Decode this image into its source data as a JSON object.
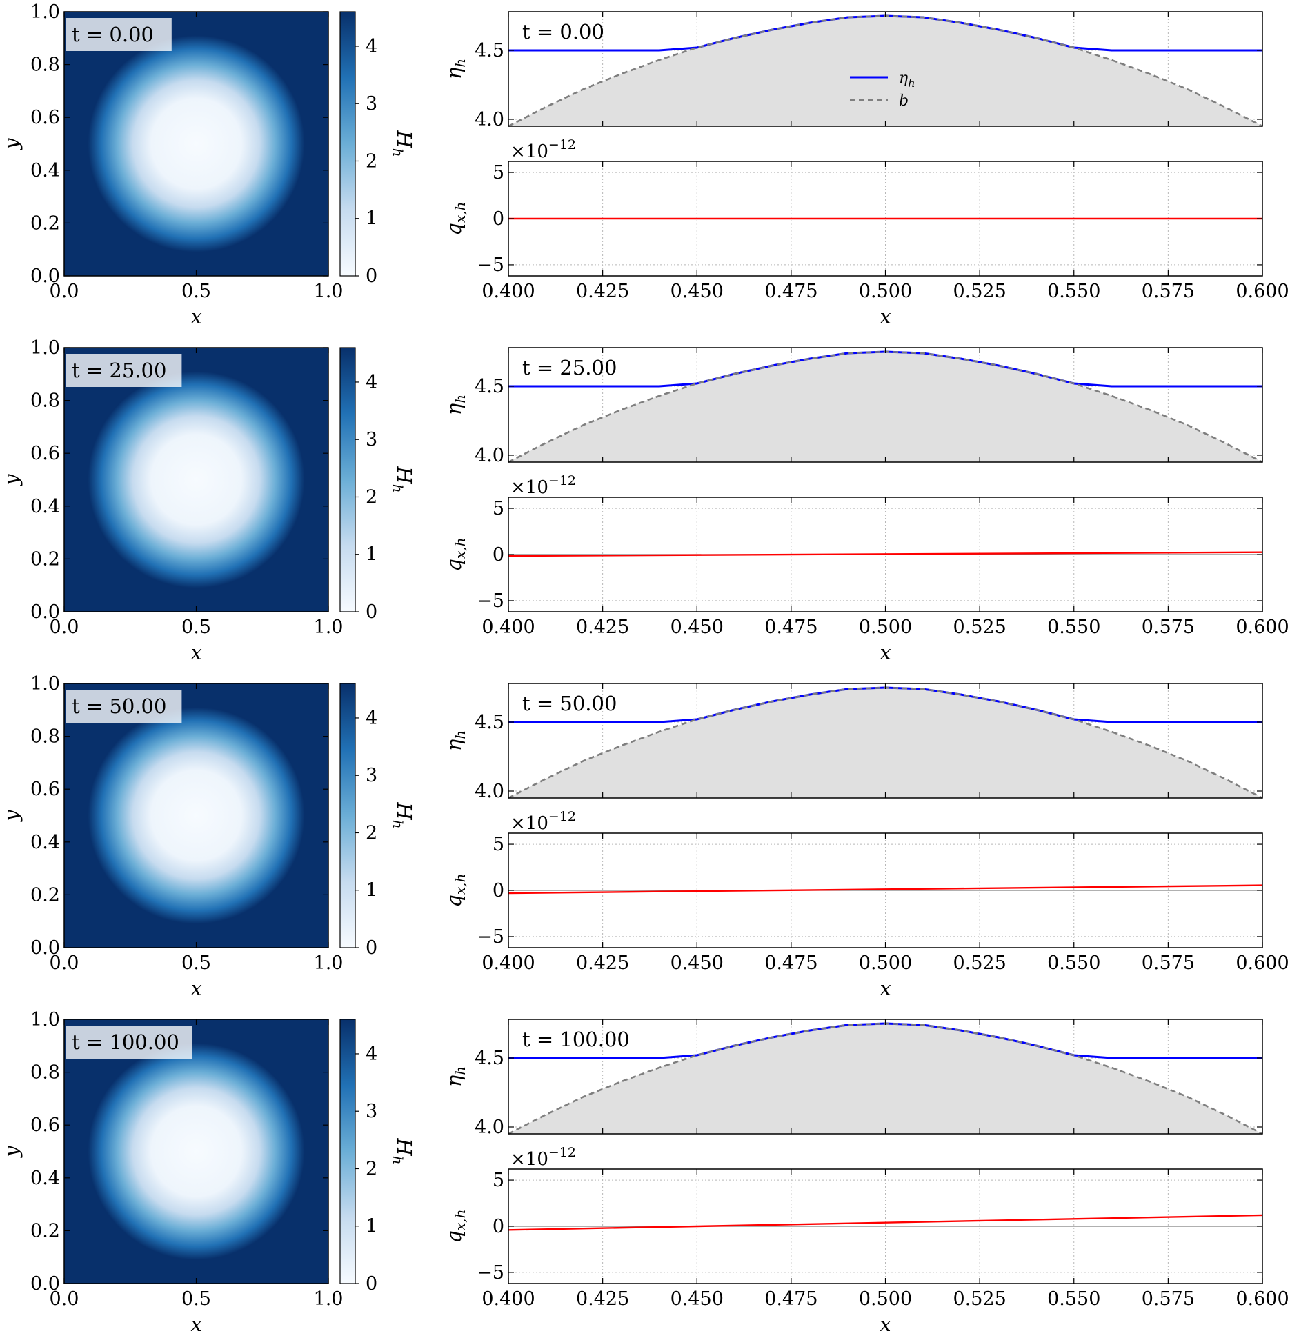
{
  "chart_data": {
    "type": "figure-grid",
    "colors": {
      "eta": "#0000ff",
      "bathymetry": "#7f7f7f",
      "fill": "#e0e0e0",
      "q": "#ff0000",
      "zero_line": "#808080",
      "colormap_low": "#f7fbff",
      "colormap_high": "#08306b"
    },
    "rows": [
      {
        "time_label": "t = 0.00",
        "heatmap": {
          "type": "heatmap",
          "colormap": "Blues",
          "x_ticks": [
            "0.0",
            "0.5",
            "1.0"
          ],
          "y_ticks": [
            "0.0",
            "0.2",
            "0.4",
            "0.6",
            "0.8",
            "1.0"
          ],
          "xlabel": "x",
          "ylabel": "y",
          "colorbar_label": "H",
          "colorbar_label_sub": "h",
          "colorbar_ticks": [
            "0",
            "1",
            "2",
            "3",
            "4"
          ],
          "clim": [
            0,
            4.6
          ]
        },
        "eta_plot": {
          "type": "line",
          "ylabel": "η",
          "ylabel_sub": "h",
          "y_ticks": [
            "4.0",
            "4.5"
          ],
          "ylim": [
            3.95,
            4.78
          ],
          "xlim": [
            0.4,
            0.6
          ],
          "legend": [
            {
              "name": "η",
              "sub": "h"
            },
            {
              "name": "b",
              "sub": ""
            }
          ]
        },
        "q_plot": {
          "type": "line",
          "ylabel": "q",
          "ylabel_sub": "x,h",
          "y_ticks": [
            "5",
            "0",
            "−5"
          ],
          "ylim": [
            -6.2,
            6.2
          ],
          "exponent_base": "×10",
          "exponent_power": "−12",
          "x_ticks": [
            "0.400",
            "0.425",
            "0.450",
            "0.475",
            "0.500",
            "0.525",
            "0.550",
            "0.575",
            "0.600"
          ],
          "xlabel": "x",
          "q_line": {
            "x": [
              0.4,
              0.6
            ],
            "y": [
              0.0,
              0.0
            ]
          }
        }
      },
      {
        "time_label": "t = 25.00",
        "heatmap": {
          "x_ticks": [
            "0.0",
            "0.5",
            "1.0"
          ],
          "y_ticks": [
            "0.0",
            "0.2",
            "0.4",
            "0.6",
            "0.8",
            "1.0"
          ],
          "xlabel": "x",
          "ylabel": "y",
          "colorbar_label": "H",
          "colorbar_label_sub": "h",
          "colorbar_ticks": [
            "0",
            "1",
            "2",
            "3",
            "4"
          ]
        },
        "eta_plot": {
          "ylabel": "η",
          "ylabel_sub": "h",
          "y_ticks": [
            "4.0",
            "4.5"
          ]
        },
        "q_plot": {
          "ylabel": "q",
          "ylabel_sub": "x,h",
          "y_ticks": [
            "5",
            "0",
            "−5"
          ],
          "exponent_base": "×10",
          "exponent_power": "−12",
          "x_ticks": [
            "0.400",
            "0.425",
            "0.450",
            "0.475",
            "0.500",
            "0.525",
            "0.550",
            "0.575",
            "0.600"
          ],
          "xlabel": "x",
          "q_line": {
            "x": [
              0.4,
              0.6
            ],
            "y": [
              -0.15,
              0.25
            ]
          }
        }
      },
      {
        "time_label": "t = 50.00",
        "heatmap": {
          "x_ticks": [
            "0.0",
            "0.5",
            "1.0"
          ],
          "y_ticks": [
            "0.0",
            "0.2",
            "0.4",
            "0.6",
            "0.8",
            "1.0"
          ],
          "xlabel": "x",
          "ylabel": "y",
          "colorbar_label": "H",
          "colorbar_label_sub": "h",
          "colorbar_ticks": [
            "0",
            "1",
            "2",
            "3",
            "4"
          ]
        },
        "eta_plot": {
          "ylabel": "η",
          "ylabel_sub": "h",
          "y_ticks": [
            "4.0",
            "4.5"
          ]
        },
        "q_plot": {
          "ylabel": "q",
          "ylabel_sub": "x,h",
          "y_ticks": [
            "5",
            "0",
            "−5"
          ],
          "exponent_base": "×10",
          "exponent_power": "−12",
          "x_ticks": [
            "0.400",
            "0.425",
            "0.450",
            "0.475",
            "0.500",
            "0.525",
            "0.550",
            "0.575",
            "0.600"
          ],
          "xlabel": "x",
          "q_line": {
            "x": [
              0.4,
              0.6
            ],
            "y": [
              -0.3,
              0.55
            ]
          }
        }
      },
      {
        "time_label": "t = 100.00",
        "heatmap": {
          "x_ticks": [
            "0.0",
            "0.5",
            "1.0"
          ],
          "y_ticks": [
            "0.0",
            "0.2",
            "0.4",
            "0.6",
            "0.8",
            "1.0"
          ],
          "xlabel": "x",
          "ylabel": "y",
          "colorbar_label": "H",
          "colorbar_label_sub": "h",
          "colorbar_ticks": [
            "0",
            "1",
            "2",
            "3",
            "4"
          ]
        },
        "eta_plot": {
          "ylabel": "η",
          "ylabel_sub": "h",
          "y_ticks": [
            "4.0",
            "4.5"
          ]
        },
        "q_plot": {
          "ylabel": "q",
          "ylabel_sub": "x,h",
          "y_ticks": [
            "5",
            "0",
            "−5"
          ],
          "exponent_base": "×10",
          "exponent_power": "−12",
          "x_ticks": [
            "0.400",
            "0.425",
            "0.450",
            "0.475",
            "0.500",
            "0.525",
            "0.550",
            "0.575",
            "0.600"
          ],
          "xlabel": "x",
          "q_line": {
            "x": [
              0.4,
              0.6
            ],
            "y": [
              -0.4,
              1.2
            ]
          }
        }
      }
    ],
    "bathymetry": {
      "description_free": true,
      "x": [
        0.4,
        0.41,
        0.42,
        0.43,
        0.44,
        0.45,
        0.46,
        0.47,
        0.48,
        0.49,
        0.5,
        0.51,
        0.52,
        0.53,
        0.54,
        0.55,
        0.56,
        0.57,
        0.58,
        0.59,
        0.6
      ],
      "y": [
        3.95,
        4.09,
        4.22,
        4.33,
        4.43,
        4.52,
        4.59,
        4.65,
        4.7,
        4.74,
        4.75,
        4.74,
        4.7,
        4.65,
        4.59,
        4.52,
        4.43,
        4.33,
        4.22,
        4.09,
        3.95
      ]
    },
    "eta_level": 4.5
  }
}
